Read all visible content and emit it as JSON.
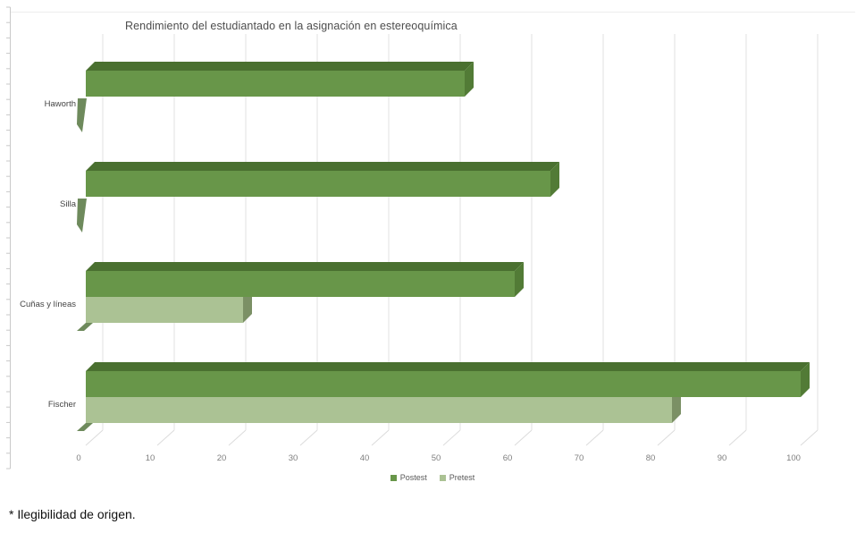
{
  "footnote": "* Ilegibilidad de origen.",
  "chart_data": {
    "type": "bar",
    "orientation": "horizontal",
    "style": "3d",
    "title": "Rendimiento del estudiantado en la asignación en estereoquímica",
    "categories": [
      "Haworth",
      "Silla",
      "Cuñas y líneas",
      "Fischer"
    ],
    "series": [
      {
        "name": "Postest",
        "values": [
          53,
          65,
          60,
          100
        ],
        "color": "#689649",
        "color_top": "#4a7030",
        "color_side": "#527b36"
      },
      {
        "name": "Pretest",
        "values": [
          0,
          0,
          22,
          82
        ],
        "color": "#abc294",
        "color_side": "#7b9065",
        "color_zero_plate": "#6e8a5c"
      }
    ],
    "xticks": [
      0,
      10,
      20,
      30,
      40,
      50,
      60,
      70,
      80,
      90,
      100
    ],
    "xlim": [
      0,
      100
    ],
    "xlabel": "",
    "ylabel": "",
    "grid": true,
    "legend_position": "bottom",
    "colors": {
      "gridline": "#e2e2e2",
      "grid_diagonal": "#dcdcdc",
      "category_axis": "#c9c9c9",
      "tick_text": "#7f7f7f",
      "category_text": "#444444",
      "frame_top": "#ededed"
    }
  }
}
